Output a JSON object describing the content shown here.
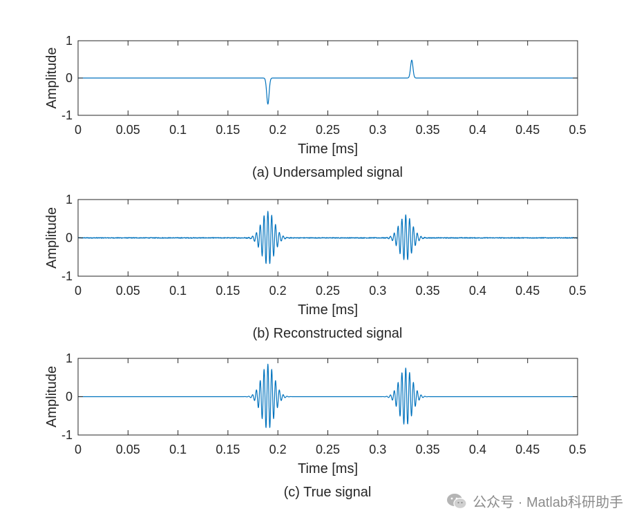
{
  "style": {
    "trace_color": "#0072BD"
  },
  "chart_data": [
    {
      "type": "line",
      "caption": "(a) Undersampled signal",
      "xlabel": "Time [ms]",
      "ylabel": "Amplitude",
      "xlim": [
        0,
        0.5
      ],
      "ylim": [
        -1,
        1
      ],
      "xticks": [
        "0",
        "0.05",
        "0.1",
        "0.15",
        "0.2",
        "0.25",
        "0.3",
        "0.35",
        "0.4",
        "0.45",
        "0.5"
      ],
      "yticks": [
        "-1",
        "0",
        "1"
      ],
      "events": [
        {
          "t": 0.19,
          "amplitude": -0.7,
          "kind": "spike"
        },
        {
          "t": 0.334,
          "amplitude": 0.48,
          "kind": "spike"
        }
      ]
    },
    {
      "type": "line",
      "caption": "(b) Reconstructed signal",
      "xlabel": "Time [ms]",
      "ylabel": "Amplitude",
      "xlim": [
        0,
        0.5
      ],
      "ylim": [
        -1,
        1
      ],
      "xticks": [
        "0",
        "0.05",
        "0.1",
        "0.15",
        "0.2",
        "0.25",
        "0.3",
        "0.35",
        "0.4",
        "0.45",
        "0.5"
      ],
      "yticks": [
        "-1",
        "0",
        "1"
      ],
      "events": [
        {
          "t": 0.19,
          "amplitude": 0.7,
          "kind": "wavelet"
        },
        {
          "t": 0.328,
          "amplitude": 0.6,
          "kind": "wavelet"
        }
      ],
      "noise_level": 0.02
    },
    {
      "type": "line",
      "caption": "(c) True signal",
      "xlabel": "Time [ms]",
      "ylabel": "Amplitude",
      "xlim": [
        0,
        0.5
      ],
      "ylim": [
        -1,
        1
      ],
      "xticks": [
        "0",
        "0.05",
        "0.1",
        "0.15",
        "0.2",
        "0.25",
        "0.3",
        "0.35",
        "0.4",
        "0.45",
        "0.5"
      ],
      "yticks": [
        "-1",
        "0",
        "1"
      ],
      "events": [
        {
          "t": 0.19,
          "amplitude": 0.85,
          "kind": "wavelet"
        },
        {
          "t": 0.328,
          "amplitude": 0.75,
          "kind": "wavelet"
        }
      ],
      "noise_level": 0
    }
  ],
  "watermark": {
    "text": "公众号 · Matlab科研助手"
  }
}
